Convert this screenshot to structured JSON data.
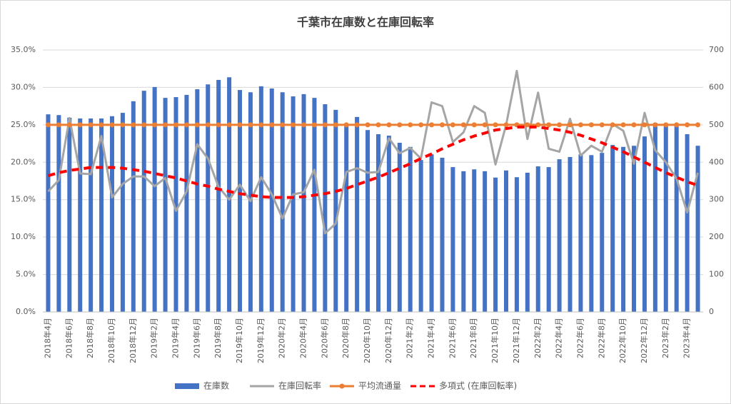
{
  "chart_data": {
    "type": "combo",
    "title": "千葉市在庫数と在庫回転率",
    "categories": [
      "2018年4月",
      null,
      "2018年6月",
      null,
      "2018年8月",
      null,
      "2018年10月",
      null,
      "2018年12月",
      null,
      "2019年2月",
      null,
      "2019年4月",
      null,
      "2019年6月",
      null,
      "2019年8月",
      null,
      "2019年10月",
      null,
      "2019年12月",
      null,
      "2020年2月",
      null,
      "2020年4月",
      null,
      "2020年6月",
      null,
      "2020年8月",
      null,
      "2020年10月",
      null,
      "2020年12月",
      null,
      "2021年2月",
      null,
      "2021年4月",
      null,
      "2021年6月",
      null,
      "2021年8月",
      null,
      "2021年10月",
      null,
      "2021年12月",
      null,
      "2022年2月",
      null,
      "2022年4月",
      null,
      "2022年6月",
      null,
      "2022年8月",
      null,
      "2022年10月",
      null,
      "2022年12月",
      null,
      "2023年2月",
      null,
      "2023年4月",
      null
    ],
    "series": [
      {
        "name": "在庫数",
        "type": "bar",
        "axis": "y2",
        "color": "#4472c4",
        "values": [
          528,
          526,
          519,
          517,
          517,
          517,
          523,
          532,
          563,
          591,
          601,
          572,
          574,
          580,
          595,
          608,
          620,
          627,
          593,
          587,
          603,
          597,
          587,
          576,
          582,
          572,
          555,
          540,
          500,
          521,
          486,
          475,
          471,
          452,
          441,
          406,
          421,
          412,
          387,
          376,
          381,
          376,
          359,
          378,
          360,
          372,
          389,
          387,
          408,
          414,
          421,
          419,
          425,
          446,
          441,
          444,
          469,
          505,
          500,
          500,
          475,
          444
        ]
      },
      {
        "name": "在庫回転率",
        "type": "line",
        "axis": "y",
        "color": "#a5a5a5",
        "values": [
          16.1,
          17.6,
          25.9,
          18.5,
          18.4,
          23.5,
          15.3,
          17.1,
          18.1,
          18.1,
          16.8,
          17.9,
          13.5,
          16.1,
          22.4,
          20.5,
          16.7,
          15.0,
          17.0,
          14.8,
          18.0,
          15.7,
          12.5,
          15.7,
          16.0,
          19.0,
          10.5,
          11.8,
          18.7,
          19.2,
          18.6,
          18.7,
          23.2,
          21.2,
          21.9,
          20.5,
          28.0,
          27.5,
          22.7,
          24.0,
          27.5,
          26.6,
          19.7,
          25.0,
          32.2,
          23.1,
          29.3,
          21.8,
          21.4,
          25.8,
          20.9,
          22.2,
          21.4,
          25.1,
          24.2,
          19.8,
          26.6,
          21.6,
          20.0,
          17.8,
          13.3,
          18.6
        ]
      },
      {
        "name": "平均流通量",
        "type": "line",
        "axis": "y2",
        "color": "#ed7d31",
        "marker": true,
        "values": [
          500,
          500,
          500,
          500,
          500,
          500,
          500,
          500,
          500,
          500,
          500,
          500,
          500,
          500,
          500,
          500,
          500,
          500,
          500,
          500,
          500,
          500,
          500,
          500,
          500,
          500,
          500,
          500,
          500,
          500,
          500,
          500,
          500,
          500,
          500,
          500,
          500,
          500,
          500,
          500,
          500,
          500,
          500,
          500,
          500,
          500,
          500,
          500,
          500,
          500,
          500,
          500,
          500,
          500,
          500,
          500,
          500,
          500,
          500,
          500,
          500,
          500
        ]
      },
      {
        "name": "多項式 (在庫回転率)",
        "type": "line",
        "axis": "y",
        "color": "#ff0000",
        "dashed": true,
        "values": [
          18.2,
          18.6,
          18.9,
          19.1,
          19.3,
          19.3,
          19.3,
          19.2,
          19.0,
          18.8,
          18.5,
          18.2,
          17.9,
          17.5,
          17.1,
          16.8,
          16.4,
          16.1,
          15.8,
          15.6,
          15.4,
          15.3,
          15.3,
          15.3,
          15.4,
          15.6,
          15.8,
          16.1,
          16.5,
          17.0,
          17.5,
          18.0,
          18.6,
          19.2,
          19.8,
          20.5,
          21.1,
          21.8,
          22.4,
          23.0,
          23.5,
          23.9,
          24.3,
          24.5,
          24.7,
          24.7,
          24.7,
          24.5,
          24.3,
          24.0,
          23.6,
          23.1,
          22.6,
          22.0,
          21.4,
          20.7,
          20.0,
          19.3,
          18.6,
          18.0,
          17.4,
          16.9
        ]
      }
    ],
    "ylim": [
      0,
      35
    ],
    "yticks": [
      {
        "value": 0,
        "label": "0.0%"
      },
      {
        "value": 5,
        "label": "5.0%"
      },
      {
        "value": 10,
        "label": "10.0%"
      },
      {
        "value": 15,
        "label": "15.0%"
      },
      {
        "value": 20,
        "label": "20.0%"
      },
      {
        "value": 25,
        "label": "25.0%"
      },
      {
        "value": 30,
        "label": "30.0%"
      },
      {
        "value": 35,
        "label": "35.0%"
      }
    ],
    "y2lim": [
      0,
      700
    ],
    "y2ticks": [
      0,
      100,
      200,
      300,
      400,
      500,
      600,
      700
    ],
    "grid": true,
    "legend": "bottom"
  }
}
